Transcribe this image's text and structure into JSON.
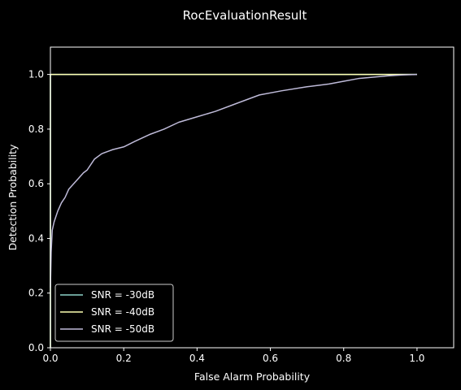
{
  "chart_data": {
    "type": "line",
    "title": "RocEvaluationResult",
    "xlabel": "False Alarm Probability",
    "ylabel": "Detection Probability",
    "xlim": [
      0.0,
      1.1
    ],
    "ylim": [
      0.0,
      1.1
    ],
    "xticks": [
      "0.0",
      "0.2",
      "0.4",
      "0.6",
      "0.8",
      "1.0"
    ],
    "yticks": [
      "0.0",
      "0.2",
      "0.4",
      "0.6",
      "0.8",
      "1.0"
    ],
    "grid": false,
    "legend_position": "lower-left",
    "background": "#000000",
    "foreground": "#ffffff",
    "series": [
      {
        "name": "SNR = -30dB",
        "color": "#8dd3c7",
        "x": [
          0.0,
          0.0,
          1.0
        ],
        "y": [
          0.0,
          1.0,
          1.0
        ]
      },
      {
        "name": "SNR = -40dB",
        "color": "#feffb3",
        "x": [
          0.0,
          0.0,
          1.0
        ],
        "y": [
          0.0,
          1.0,
          1.0
        ]
      },
      {
        "name": "SNR = -50dB",
        "color": "#bfbbd9",
        "x": [
          0.0,
          0.002,
          0.005,
          0.01,
          0.02,
          0.03,
          0.04,
          0.05,
          0.07,
          0.09,
          0.1,
          0.12,
          0.14,
          0.16,
          0.17,
          0.2,
          0.23,
          0.27,
          0.31,
          0.35,
          0.4,
          0.45,
          0.5,
          0.57,
          0.63,
          0.7,
          0.76,
          0.8,
          0.84,
          0.88,
          0.92,
          0.96,
          1.0
        ],
        "y": [
          0.22,
          0.35,
          0.43,
          0.46,
          0.5,
          0.53,
          0.55,
          0.58,
          0.61,
          0.64,
          0.65,
          0.69,
          0.71,
          0.72,
          0.725,
          0.735,
          0.755,
          0.78,
          0.8,
          0.825,
          0.845,
          0.865,
          0.89,
          0.925,
          0.94,
          0.955,
          0.965,
          0.975,
          0.985,
          0.99,
          0.995,
          0.998,
          1.0
        ]
      }
    ]
  }
}
